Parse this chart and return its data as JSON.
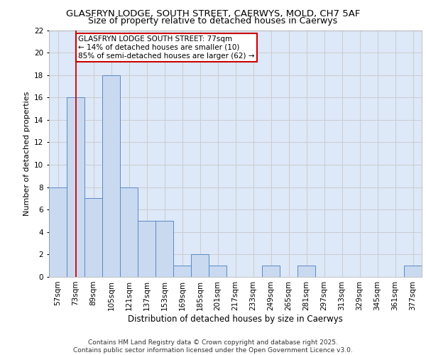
{
  "title_line1": "GLASFRYN LODGE, SOUTH STREET, CAERWYS, MOLD, CH7 5AF",
  "title_line2": "Size of property relative to detached houses in Caerwys",
  "xlabel": "Distribution of detached houses by size in Caerwys",
  "ylabel": "Number of detached properties",
  "categories": [
    "57sqm",
    "73sqm",
    "89sqm",
    "105sqm",
    "121sqm",
    "137sqm",
    "153sqm",
    "169sqm",
    "185sqm",
    "201sqm",
    "217sqm",
    "233sqm",
    "249sqm",
    "265sqm",
    "281sqm",
    "297sqm",
    "313sqm",
    "329sqm",
    "345sqm",
    "361sqm",
    "377sqm"
  ],
  "values": [
    8,
    16,
    7,
    18,
    8,
    5,
    5,
    1,
    2,
    1,
    0,
    0,
    1,
    0,
    1,
    0,
    0,
    0,
    0,
    0,
    1
  ],
  "bar_color": "#c9d9f0",
  "bar_edge_color": "#5a8ac6",
  "grid_color": "#cccccc",
  "background_color": "#dde8f8",
  "redline_index": 1,
  "annotation_text": "GLASFRYN LODGE SOUTH STREET: 77sqm\n← 14% of detached houses are smaller (10)\n85% of semi-detached houses are larger (62) →",
  "annotation_box_color": "#ffffff",
  "annotation_box_edge_color": "#cc0000",
  "footer_text": "Contains HM Land Registry data © Crown copyright and database right 2025.\nContains public sector information licensed under the Open Government Licence v3.0.",
  "ylim": [
    0,
    22
  ],
  "yticks": [
    0,
    2,
    4,
    6,
    8,
    10,
    12,
    14,
    16,
    18,
    20,
    22
  ],
  "title1_fontsize": 9.5,
  "title2_fontsize": 9.0,
  "ylabel_fontsize": 8.0,
  "xlabel_fontsize": 8.5,
  "footer_fontsize": 6.5,
  "tick_fontsize": 7.5,
  "ann_fontsize": 7.5
}
